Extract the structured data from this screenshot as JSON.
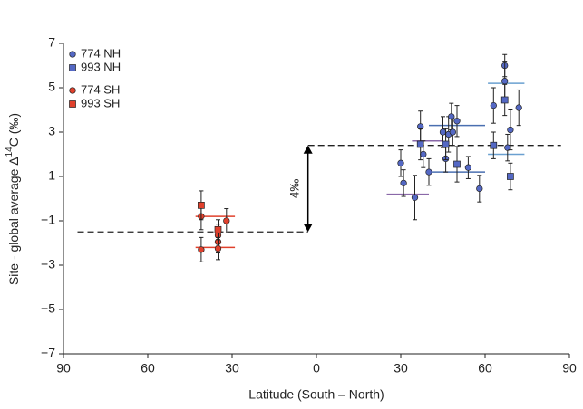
{
  "chart_data": {
    "type": "scatter",
    "xlabel": "Latitude (South – North)",
    "ylabel": {
      "prefix": "Site - global average Δ",
      "sup": "14",
      "suffix": "C (‰)"
    },
    "xlim": [
      -90,
      90
    ],
    "xticks": [
      {
        "value": -90,
        "label": "90"
      },
      {
        "value": -60,
        "label": "60"
      },
      {
        "value": -30,
        "label": "30"
      },
      0,
      30,
      60,
      90
    ],
    "ylim": [
      -7,
      7
    ],
    "yticks": [
      {
        "value": -7,
        "label": "−7"
      },
      {
        "value": -5,
        "label": "−5"
      },
      {
        "value": -3,
        "label": "−3"
      },
      {
        "value": -1,
        "label": "−1"
      },
      1,
      3,
      5,
      7
    ],
    "series": [
      {
        "name": "774 NH",
        "color": "#5468c4",
        "marker": "circle",
        "x": [
          30,
          31,
          35,
          37,
          38,
          40,
          45,
          46,
          47,
          48,
          48.5,
          50,
          54,
          58,
          63,
          67,
          67,
          68,
          69,
          72
        ],
        "values": [
          1.6,
          0.7,
          0.05,
          3.25,
          2.0,
          1.2,
          3.0,
          1.8,
          2.9,
          3.7,
          3.0,
          3.5,
          1.4,
          0.45,
          4.2,
          6.0,
          5.3,
          2.3,
          3.1,
          4.1
        ],
        "errors": [
          0.6,
          0.6,
          1.0,
          0.7,
          0.6,
          0.6,
          0.7,
          0.6,
          0.8,
          0.6,
          0.6,
          0.7,
          0.5,
          0.6,
          0.8,
          0.5,
          0.9,
          0.6,
          0.9,
          0.8
        ]
      },
      {
        "name": "993 NH",
        "color": "#5468c4",
        "marker": "square",
        "x": [
          37,
          46,
          50,
          63,
          67,
          69
        ],
        "values": [
          2.45,
          2.45,
          1.55,
          2.4,
          4.45,
          1.0
        ],
        "errors": [
          0.7,
          0.7,
          0.8,
          0.6,
          0.7,
          0.6
        ]
      },
      {
        "name": "774 SH",
        "color": "#e0402c",
        "marker": "circle",
        "x": [
          -41,
          -41,
          -32,
          -35,
          -35,
          -35
        ],
        "values": [
          -0.8,
          -2.3,
          -1.0,
          -1.65,
          -1.95,
          -2.25
        ],
        "errors": [
          0.6,
          0.55,
          0.55,
          0.5,
          0.5,
          0.5
        ]
      },
      {
        "name": "993 SH",
        "color": "#e0402c",
        "marker": "square",
        "x": [
          -41,
          -35
        ],
        "values": [
          -0.3,
          -1.4
        ],
        "errors": [
          0.65,
          0.45
        ]
      }
    ],
    "range_lines": [
      {
        "x": [
          34,
          45
        ],
        "y": 2.6,
        "color": "#8a68a8"
      },
      {
        "x": [
          25,
          40
        ],
        "y": 0.2,
        "color": "#8a68a8"
      },
      {
        "x": [
          40,
          60
        ],
        "y": 3.3,
        "color": "#4a6fb0"
      },
      {
        "x": [
          40,
          60
        ],
        "y": 1.2,
        "color": "#4a6fb0"
      },
      {
        "x": [
          61,
          74
        ],
        "y": 5.2,
        "color": "#6aa0d0"
      },
      {
        "x": [
          61,
          74
        ],
        "y": 2.0,
        "color": "#6aa0d0"
      },
      {
        "x": [
          -43,
          -29
        ],
        "y": -0.8,
        "color": "#e0402c"
      },
      {
        "x": [
          -43,
          -29
        ],
        "y": -2.2,
        "color": "#e0402c"
      }
    ],
    "averages": [
      {
        "x": [
          -85,
          -3
        ],
        "y": -1.5
      },
      {
        "x": [
          -3,
          87
        ],
        "y": 2.4
      }
    ],
    "annotation": {
      "text": "4‰",
      "x": -3,
      "y": [
        -1.5,
        2.4
      ]
    }
  }
}
